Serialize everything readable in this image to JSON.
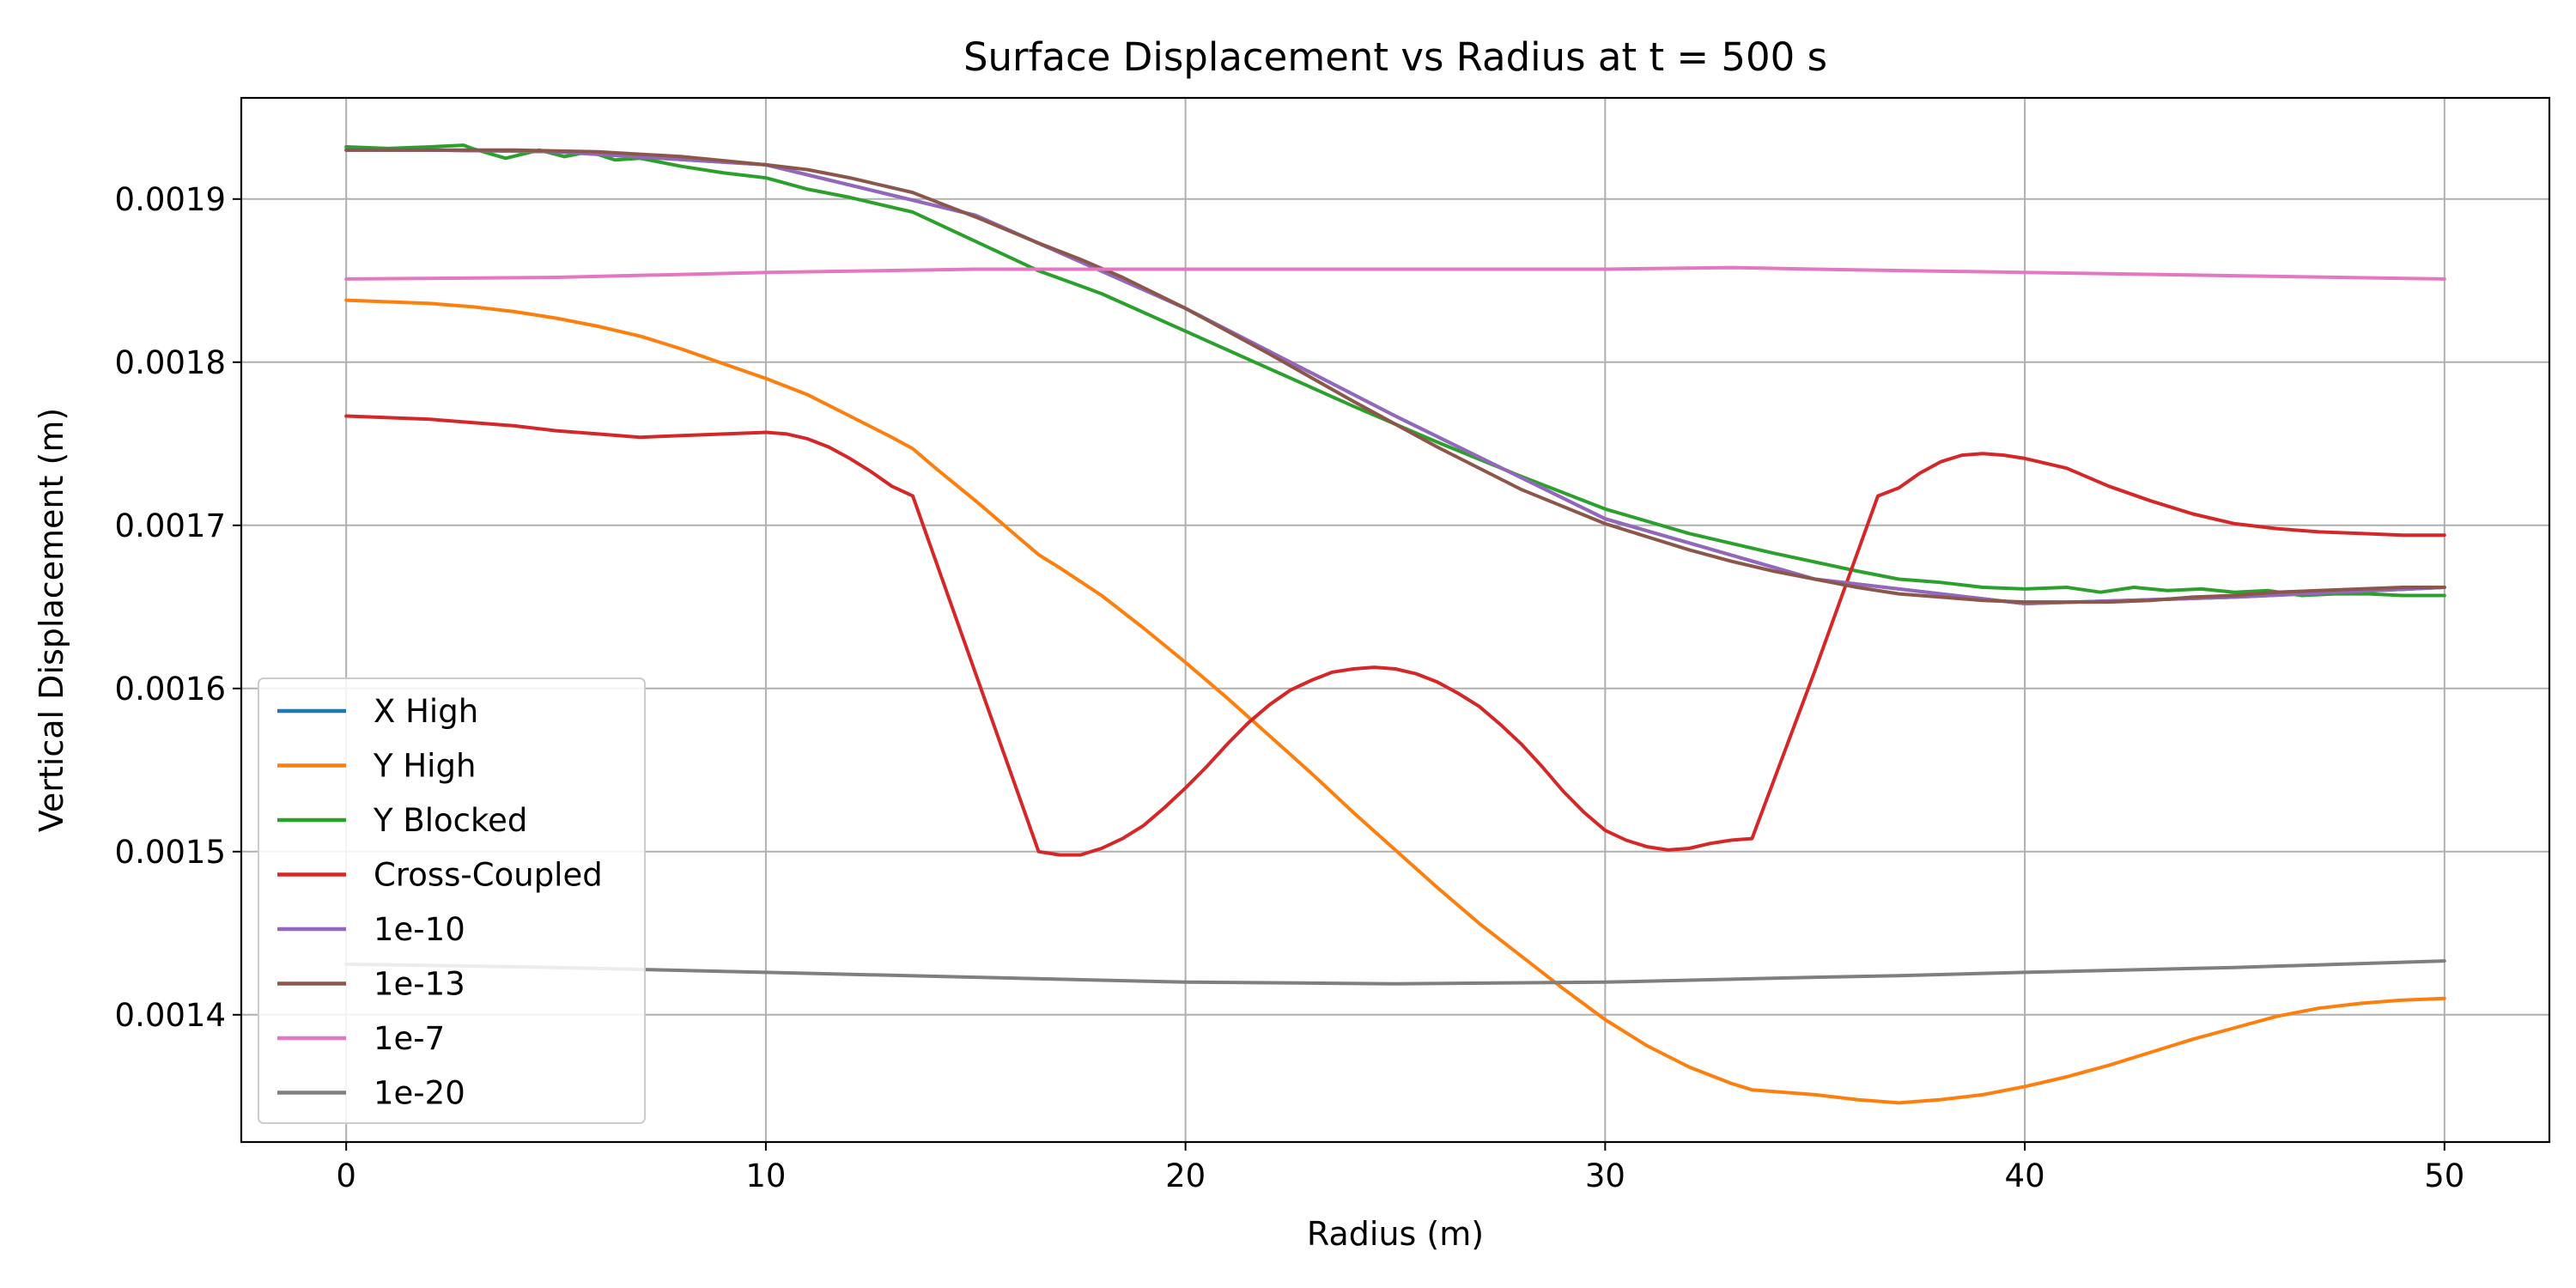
{
  "chart_data": {
    "type": "line",
    "title": "Surface Displacement vs Radius at t = 500 s",
    "xlabel": "Radius (m)",
    "ylabel": "Vertical Displacement (m)",
    "xlim": [
      -2.5,
      52.5
    ],
    "ylim": [
      0.001322,
      0.001962
    ],
    "xticks": [
      0,
      10,
      20,
      30,
      40,
      50
    ],
    "xtick_labels": [
      "0",
      "10",
      "20",
      "30",
      "40",
      "50"
    ],
    "yticks": [
      0.0014,
      0.0015,
      0.0016,
      0.0017,
      0.0018,
      0.0019
    ],
    "ytick_labels": [
      "0.0014",
      "0.0015",
      "0.0016",
      "0.0017",
      "0.0018",
      "0.0019"
    ],
    "grid": true,
    "legend_position": "lower-left",
    "series": [
      {
        "name": "X High",
        "color": "#1f77b4",
        "x": [
          0,
          2,
          5,
          10,
          15,
          20,
          25,
          30,
          35,
          40,
          45,
          50
        ],
        "y": [
          0.00193,
          0.00193,
          0.001929,
          0.001921,
          0.00189,
          0.001833,
          0.001767,
          0.001704,
          0.001667,
          0.001652,
          0.001656,
          0.001662
        ]
      },
      {
        "name": "Y High",
        "color": "#ff7f0e",
        "x": [
          0,
          1,
          2,
          3,
          4,
          5,
          6,
          7,
          8,
          9,
          10,
          11,
          12,
          13,
          13.5,
          14,
          15,
          16,
          16.5,
          17,
          18,
          19,
          20,
          21,
          22,
          23,
          24,
          25,
          26,
          27,
          28,
          29,
          30,
          31,
          32,
          33,
          33.5,
          34,
          35,
          36,
          37,
          38,
          39,
          40,
          41,
          42,
          43,
          44,
          45,
          46,
          47,
          48,
          49,
          50
        ],
        "y": [
          0.001838,
          0.001837,
          0.001836,
          0.001834,
          0.001831,
          0.001827,
          0.001822,
          0.001816,
          0.001808,
          0.001799,
          0.00179,
          0.00178,
          0.001767,
          0.001754,
          0.001747,
          0.001736,
          0.001715,
          0.001693,
          0.001682,
          0.001674,
          0.001657,
          0.001637,
          0.001616,
          0.001594,
          0.001571,
          0.001548,
          0.001524,
          0.001501,
          0.001478,
          0.001456,
          0.001436,
          0.001416,
          0.001397,
          0.001381,
          0.001368,
          0.001358,
          0.001354,
          0.001353,
          0.001351,
          0.001348,
          0.001346,
          0.001348,
          0.001351,
          0.001356,
          0.001362,
          0.001369,
          0.001377,
          0.001385,
          0.001392,
          0.001399,
          0.001404,
          0.001407,
          0.001409,
          0.00141
        ]
      },
      {
        "name": "Y Blocked",
        "color": "#2ca02c",
        "x": [
          0,
          1,
          2,
          2.8,
          3,
          3.8,
          4.6,
          5.2,
          5.8,
          6.4,
          7,
          8,
          9,
          10,
          11,
          12,
          13,
          13.5,
          15,
          16.5,
          18,
          20,
          22,
          24,
          26,
          28,
          30,
          32,
          34,
          36,
          37,
          38,
          39,
          40,
          41,
          41.8,
          42.6,
          43.4,
          44.2,
          45,
          45.8,
          46.6,
          47.4,
          48.2,
          49,
          50
        ],
        "y": [
          0.001932,
          0.001931,
          0.001932,
          0.001933,
          0.001931,
          0.001925,
          0.00193,
          0.001926,
          0.001929,
          0.001924,
          0.001925,
          0.00192,
          0.001916,
          0.001913,
          0.001906,
          0.001901,
          0.001895,
          0.001892,
          0.001874,
          0.001856,
          0.001842,
          0.001819,
          0.001796,
          0.001773,
          0.001751,
          0.00173,
          0.00171,
          0.001695,
          0.001683,
          0.001672,
          0.001667,
          0.001665,
          0.001662,
          0.001661,
          0.001662,
          0.001659,
          0.001662,
          0.00166,
          0.001661,
          0.001659,
          0.00166,
          0.001657,
          0.001658,
          0.001658,
          0.001657,
          0.001657
        ]
      },
      {
        "name": "Cross-Coupled",
        "color": "#d62728",
        "x": [
          0,
          1,
          2,
          3,
          4,
          5,
          6,
          7,
          8,
          9,
          10,
          10.5,
          11,
          11.5,
          12,
          12.5,
          13,
          13.5,
          15,
          16.5,
          17,
          17.5,
          18,
          18.5,
          19,
          19.5,
          20,
          20.5,
          21,
          21.5,
          22,
          22.5,
          23,
          23.5,
          24,
          24.5,
          25,
          25.5,
          26,
          26.5,
          27,
          27.5,
          28,
          28.5,
          29,
          29.5,
          30,
          30.5,
          31,
          31.5,
          32,
          32.5,
          33,
          33.5,
          35,
          36.5,
          37,
          37.5,
          38,
          38.5,
          39,
          39.5,
          40,
          40.5,
          41,
          42,
          43,
          44,
          45,
          46,
          47,
          48,
          49,
          50
        ],
        "y": [
          0.001767,
          0.001766,
          0.001765,
          0.001763,
          0.001761,
          0.001758,
          0.001756,
          0.001754,
          0.001755,
          0.001756,
          0.001757,
          0.001756,
          0.001753,
          0.001748,
          0.001741,
          0.001733,
          0.001724,
          0.001718,
          0.001609,
          0.0015,
          0.001498,
          0.001498,
          0.001502,
          0.001508,
          0.001516,
          0.001527,
          0.001539,
          0.001552,
          0.001566,
          0.001579,
          0.00159,
          0.001599,
          0.001605,
          0.00161,
          0.001612,
          0.001613,
          0.001612,
          0.001609,
          0.001604,
          0.001597,
          0.001589,
          0.001578,
          0.001566,
          0.001552,
          0.001537,
          0.001524,
          0.001513,
          0.001507,
          0.001503,
          0.001501,
          0.001502,
          0.001505,
          0.001507,
          0.001508,
          0.001611,
          0.001718,
          0.001723,
          0.001732,
          0.001739,
          0.001743,
          0.001744,
          0.001743,
          0.001741,
          0.001738,
          0.001735,
          0.001724,
          0.001715,
          0.001707,
          0.001701,
          0.001698,
          0.001696,
          0.001695,
          0.001694,
          0.001694
        ]
      },
      {
        "name": "1e-10",
        "color": "#9467bd",
        "x": [
          0,
          2,
          5,
          10,
          15,
          20,
          25,
          30,
          35,
          40,
          45,
          50
        ],
        "y": [
          0.00193,
          0.00193,
          0.001929,
          0.001921,
          0.00189,
          0.001833,
          0.001767,
          0.001704,
          0.001667,
          0.001652,
          0.001656,
          0.001662
        ]
      },
      {
        "name": "1e-13",
        "color": "#8c564b",
        "x": [
          0,
          2,
          4,
          6,
          8,
          10,
          11,
          12,
          13,
          13.5,
          15,
          16.5,
          17.5,
          18.5,
          20,
          22,
          24,
          26,
          28,
          30,
          31,
          32,
          33,
          34,
          35,
          36,
          37,
          38,
          39,
          40,
          41,
          42,
          43,
          44,
          45,
          46,
          47,
          48,
          49,
          50
        ],
        "y": [
          0.00193,
          0.00193,
          0.00193,
          0.001929,
          0.001926,
          0.001921,
          0.001918,
          0.001913,
          0.001907,
          0.001904,
          0.001889,
          0.001873,
          0.001863,
          0.001852,
          0.001833,
          0.001805,
          0.001776,
          0.001748,
          0.001722,
          0.001701,
          0.001693,
          0.001685,
          0.001678,
          0.001672,
          0.001667,
          0.001662,
          0.001658,
          0.001656,
          0.001654,
          0.001653,
          0.001653,
          0.001653,
          0.001654,
          0.001656,
          0.001657,
          0.001659,
          0.00166,
          0.001661,
          0.001662,
          0.001662
        ]
      },
      {
        "name": "1e-7",
        "color": "#e377c2",
        "x": [
          0,
          5,
          10,
          15,
          20,
          25,
          30,
          33,
          35,
          40,
          45,
          50
        ],
        "y": [
          0.001851,
          0.001852,
          0.001855,
          0.001857,
          0.001857,
          0.001857,
          0.001857,
          0.001858,
          0.001857,
          0.001855,
          0.001853,
          0.001851
        ]
      },
      {
        "name": "1e-20",
        "color": "#7f7f7f",
        "x": [
          0,
          5,
          10,
          15,
          20,
          25,
          30,
          35,
          37,
          40,
          45,
          50
        ],
        "y": [
          0.001431,
          0.001429,
          0.001426,
          0.001423,
          0.00142,
          0.001419,
          0.00142,
          0.001423,
          0.001424,
          0.001426,
          0.001429,
          0.001433
        ]
      }
    ]
  }
}
